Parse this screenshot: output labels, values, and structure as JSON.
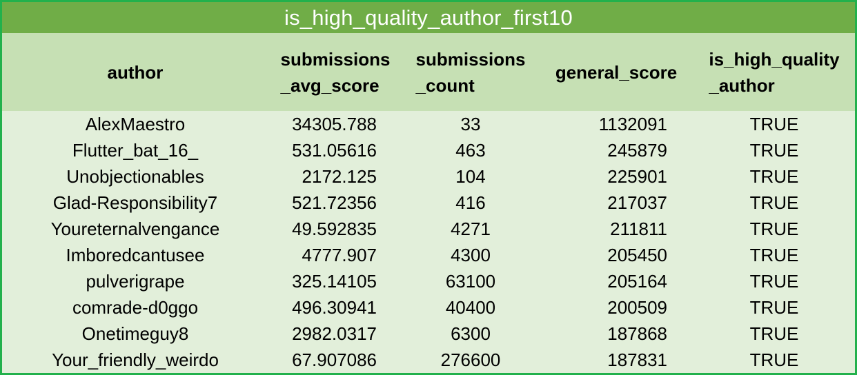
{
  "title": "is_high_quality_author_first10",
  "headers": {
    "author": "author",
    "avg_line1": "submissions",
    "avg_line2": "_avg_score",
    "count_line1": "submissions",
    "count_line2": "_count",
    "general_score": "general_score",
    "hq_line1": "is_high_quality",
    "hq_line2": "_author"
  },
  "rows": [
    {
      "author": "AlexMaestro",
      "avg_score": "34305.788",
      "count": "33",
      "general_score": "1132091",
      "is_high_quality": "TRUE"
    },
    {
      "author": "Flutter_bat_16_",
      "avg_score": "531.05616",
      "count": "463",
      "general_score": "245879",
      "is_high_quality": "TRUE"
    },
    {
      "author": "Unobjectionables",
      "avg_score": "2172.125",
      "count": "104",
      "general_score": "225901",
      "is_high_quality": "TRUE"
    },
    {
      "author": "Glad-Responsibility7",
      "avg_score": "521.72356",
      "count": "416",
      "general_score": "217037",
      "is_high_quality": "TRUE"
    },
    {
      "author": "Youreternalvengance",
      "avg_score": "49.592835",
      "count": "4271",
      "general_score": "211811",
      "is_high_quality": "TRUE"
    },
    {
      "author": "Imboredcantusee",
      "avg_score": "4777.907",
      "count": "4300",
      "general_score": "205450",
      "is_high_quality": "TRUE"
    },
    {
      "author": "pulverigrape",
      "avg_score": "325.14105",
      "count": "63100",
      "general_score": "205164",
      "is_high_quality": "TRUE"
    },
    {
      "author": "comrade-d0ggo",
      "avg_score": "496.30941",
      "count": "40400",
      "general_score": "200509",
      "is_high_quality": "TRUE"
    },
    {
      "author": "Onetimeguy8",
      "avg_score": "2982.0317",
      "count": "6300",
      "general_score": "187868",
      "is_high_quality": "TRUE"
    },
    {
      "author": "Your_friendly_weirdo",
      "avg_score": "67.907086",
      "count": "276600",
      "general_score": "187831",
      "is_high_quality": "TRUE"
    }
  ],
  "colors": {
    "border": "#22b14c",
    "title_bg": "#70ad47",
    "header_bg": "#c6e0b4",
    "body_bg": "#e2efda"
  }
}
